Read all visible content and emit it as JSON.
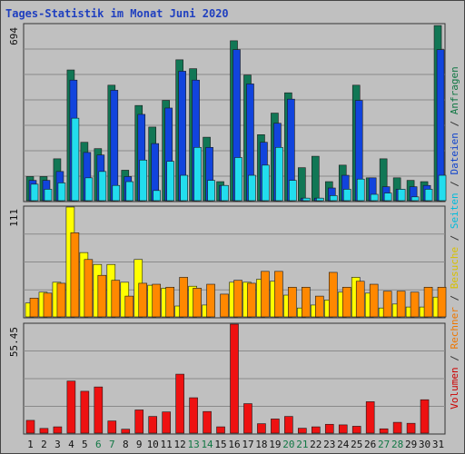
{
  "chart_data": {
    "type": "bar",
    "title": "Tages-Statistik im Monat Juni 2020",
    "categories": [
      "1",
      "2",
      "3",
      "4",
      "5",
      "6",
      "7",
      "8",
      "9",
      "10",
      "11",
      "12",
      "13",
      "14",
      "15",
      "16",
      "17",
      "18",
      "19",
      "20",
      "21",
      "22",
      "23",
      "24",
      "25",
      "26",
      "27",
      "28",
      "29",
      "30",
      "31"
    ],
    "weekend_days": [
      "6",
      "7",
      "13",
      "14",
      "20",
      "21",
      "27",
      "28"
    ],
    "right_axis_label": [
      {
        "text": "Volumen",
        "color": "#cc0000"
      },
      {
        "text": " / ",
        "color": "#333333"
      },
      {
        "text": "Rechner",
        "color": "#ee7700"
      },
      {
        "text": " / ",
        "color": "#333333"
      },
      {
        "text": "Besuche",
        "color": "#d8c000"
      },
      {
        "text": " / ",
        "color": "#333333"
      },
      {
        "text": "Seiten",
        "color": "#00bbdd"
      },
      {
        "text": " / ",
        "color": "#333333"
      },
      {
        "text": "Dateien",
        "color": "#1144cc"
      },
      {
        "text": " / ",
        "color": "#333333"
      },
      {
        "text": "Anfragen",
        "color": "#117744"
      }
    ],
    "panels": [
      {
        "ymax_label": "694",
        "ymax": 694,
        "series": [
          {
            "name": "Anfragen",
            "color": "#117755",
            "values": [
              95,
              95,
              165,
              515,
              230,
              205,
              455,
              120,
              375,
              290,
              395,
              555,
              520,
              250,
              75,
              630,
              495,
              260,
              345,
              425,
              130,
              175,
              75,
              140,
              455,
              90,
              165,
              90,
              80,
              75,
              690
            ]
          },
          {
            "name": "Dateien",
            "color": "#1144dd",
            "values": [
              80,
              80,
              115,
              475,
              190,
              180,
              435,
              95,
              340,
              225,
              365,
              510,
              475,
              210,
              60,
              595,
              460,
              230,
              305,
              400,
              10,
              10,
              50,
              100,
              395,
              90,
              55,
              45,
              55,
              60,
              595
            ]
          },
          {
            "name": "Seiten",
            "color": "#22ddee",
            "values": [
              65,
              45,
              70,
              325,
              90,
              115,
              60,
              75,
              160,
              40,
              155,
              100,
              210,
              80,
              60,
              170,
              100,
              140,
              210,
              80,
              10,
              10,
              20,
              45,
              85,
              25,
              30,
              45,
              15,
              45,
              100
            ]
          }
        ]
      },
      {
        "ymax_label": "111",
        "ymax": 111,
        "series": [
          {
            "name": "Besuche",
            "color": "#ffff00",
            "values": [
              14,
              25,
              35,
              111,
              65,
              53,
              53,
              35,
              58,
              32,
              29,
              11,
              31,
              12,
              0,
              35,
              35,
              38,
              36,
              22,
              9,
              12,
              17,
              25,
              40,
              24,
              9,
              13,
              10,
              10,
              20
            ]
          },
          {
            "name": "Rechner",
            "color": "#ff8800",
            "values": [
              19,
              24,
              34,
              85,
              58,
              42,
              37,
              21,
              34,
              33,
              30,
              40,
              29,
              33,
              23,
              37,
              34,
              46,
              46,
              30,
              30,
              21,
              45,
              30,
              36,
              33,
              26,
              26,
              25,
              30,
              30
            ]
          }
        ]
      },
      {
        "ymax_label": "55.45",
        "ymax": 55.45,
        "series": [
          {
            "name": "Volumen",
            "color": "#ee1111",
            "values": [
              6.5,
              2.4,
              3.2,
              26.5,
              21.3,
              23.5,
              6.2,
              2.0,
              11.8,
              8.5,
              10.8,
              30.0,
              18.0,
              11.0,
              3.2,
              55.45,
              15.0,
              4.8,
              7.2,
              8.5,
              2.5,
              3.2,
              4.5,
              4.2,
              3.5,
              16.0,
              2.2,
              5.5,
              5.0,
              17.0,
              0
            ]
          }
        ]
      }
    ]
  }
}
